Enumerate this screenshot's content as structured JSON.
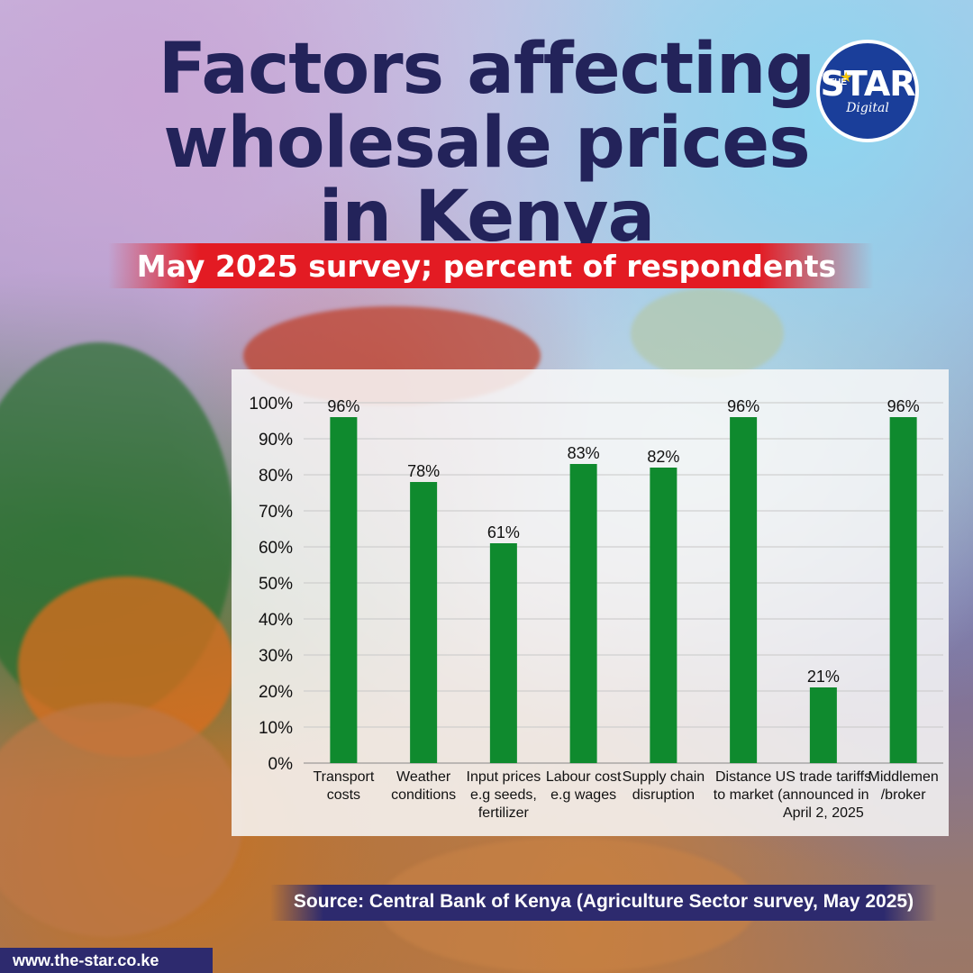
{
  "title_lines": [
    "Factors affecting",
    "wholesale prices",
    "in Kenya"
  ],
  "subtitle": "May 2025 survey; percent of respondents",
  "logo": {
    "the": "THE",
    "star": "STAR",
    "digital": "Digital"
  },
  "source": "Source: Central Bank of Kenya (Agriculture Sector survey, May 2025)",
  "website": "www.the-star.co.ke",
  "colors": {
    "bar": "#0f8a2e",
    "title": "#23235a",
    "subtitle_band": "#e31b23",
    "source_band": "#2d2a6e",
    "logo": "#1a3e9a"
  },
  "chart_data": {
    "type": "bar",
    "title": "",
    "xlabel": "",
    "ylabel": "",
    "ylim": [
      0,
      100
    ],
    "yticks": [
      "0%",
      "10%",
      "20%",
      "30%",
      "40%",
      "50%",
      "60%",
      "70%",
      "80%",
      "90%",
      "100%"
    ],
    "grid": true,
    "legend": "none",
    "categories": [
      [
        "Transport",
        "costs"
      ],
      [
        "Weather",
        "conditions"
      ],
      [
        "Input prices",
        "e.g seeds,",
        "fertilizer"
      ],
      [
        "Labour cost",
        "e.g wages"
      ],
      [
        "Supply chain",
        "disruption"
      ],
      [
        "Distance",
        "to market"
      ],
      [
        "US trade tariffs",
        "(announced in",
        "April 2, 2025"
      ],
      [
        "Middlemen",
        "/broker"
      ]
    ],
    "values": [
      96,
      78,
      61,
      83,
      82,
      96,
      21,
      96
    ],
    "data_labels": [
      "96%",
      "78%",
      "61%",
      "83%",
      "82%",
      "96%",
      "21%",
      "96%"
    ]
  }
}
